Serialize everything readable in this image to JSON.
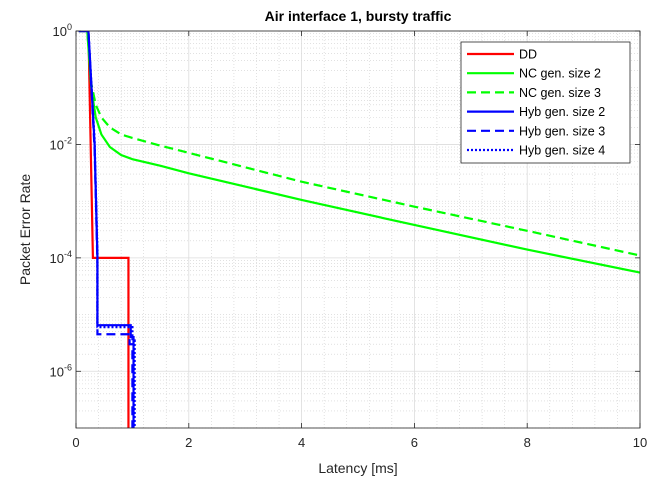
{
  "chart_data": {
    "type": "line",
    "title": "Air interface 1, bursty traffic",
    "xlabel": "Latency [ms]",
    "ylabel": "Packet Error Rate",
    "xlim": [
      0,
      10
    ],
    "ylim": [
      1e-07,
      1
    ],
    "yscale": "log",
    "grid": true,
    "minor_grid": true,
    "legend_position": "top-right",
    "x_ticks": [
      0,
      2,
      4,
      6,
      8,
      10
    ],
    "x_tick_labels": [
      "0",
      "2",
      "4",
      "6",
      "8",
      "10"
    ],
    "y_ticks": [
      1e-06,
      0.0001,
      0.01,
      1
    ],
    "y_tick_labels": [
      {
        "base": "10",
        "exp": "-6"
      },
      {
        "base": "10",
        "exp": "-4"
      },
      {
        "base": "10",
        "exp": "-2"
      },
      {
        "base": "10",
        "exp": "0"
      }
    ],
    "series": [
      {
        "name": "DD",
        "color": "#ff0000",
        "dash": "solid",
        "x": [
          0.05,
          0.22,
          0.3,
          0.3,
          0.93,
          0.93
        ],
        "y": [
          1,
          1,
          0.0001,
          0.0001,
          0.0001,
          1e-07
        ]
      },
      {
        "name": "NC gen. size 2",
        "color": "#00ff00",
        "dash": "solid",
        "x": [
          0.05,
          0.2,
          0.27,
          0.35,
          0.45,
          0.6,
          0.8,
          1.0,
          1.5,
          2,
          4,
          6,
          8,
          10
        ],
        "y": [
          1,
          1,
          0.1,
          0.03,
          0.015,
          0.009,
          0.0065,
          0.0055,
          0.0042,
          0.0031,
          0.00105,
          0.00038,
          0.00014,
          5.5e-05
        ]
      },
      {
        "name": "NC gen. size 3",
        "color": "#00ff00",
        "dash": "dashed",
        "x": [
          0.05,
          0.2,
          0.27,
          0.35,
          0.45,
          0.6,
          0.8,
          1.0,
          1.5,
          2,
          4,
          6,
          8,
          10
        ],
        "y": [
          1,
          1,
          0.12,
          0.05,
          0.03,
          0.02,
          0.015,
          0.013,
          0.0095,
          0.0071,
          0.0022,
          0.0008,
          0.0003,
          0.00011
        ]
      },
      {
        "name": "Hyb gen. size 2",
        "color": "#0000ff",
        "dash": "solid",
        "x": [
          0.05,
          0.22,
          0.33,
          0.38,
          0.38,
          0.97,
          0.97,
          1.02,
          1.02
        ],
        "y": [
          1,
          1,
          0.01,
          0.0001,
          6.5e-06,
          6.5e-06,
          4e-06,
          4e-06,
          1e-07
        ]
      },
      {
        "name": "Hyb gen. size 3",
        "color": "#0000ff",
        "dash": "dashed",
        "x": [
          0.05,
          0.22,
          0.33,
          0.38,
          0.38,
          0.95,
          0.95,
          1.0,
          1.0
        ],
        "y": [
          1,
          1,
          0.008,
          8e-05,
          4.5e-06,
          4.5e-06,
          3e-06,
          3e-06,
          1e-07
        ]
      },
      {
        "name": "Hyb gen. size 4",
        "color": "#0000ff",
        "dash": "dotted",
        "x": [
          0.05,
          0.22,
          0.33,
          0.38,
          0.38,
          1.0,
          1.0,
          1.04,
          1.04
        ],
        "y": [
          1,
          1,
          0.012,
          0.00012,
          6e-06,
          6e-06,
          3.5e-06,
          3.5e-06,
          1e-07
        ]
      }
    ]
  }
}
